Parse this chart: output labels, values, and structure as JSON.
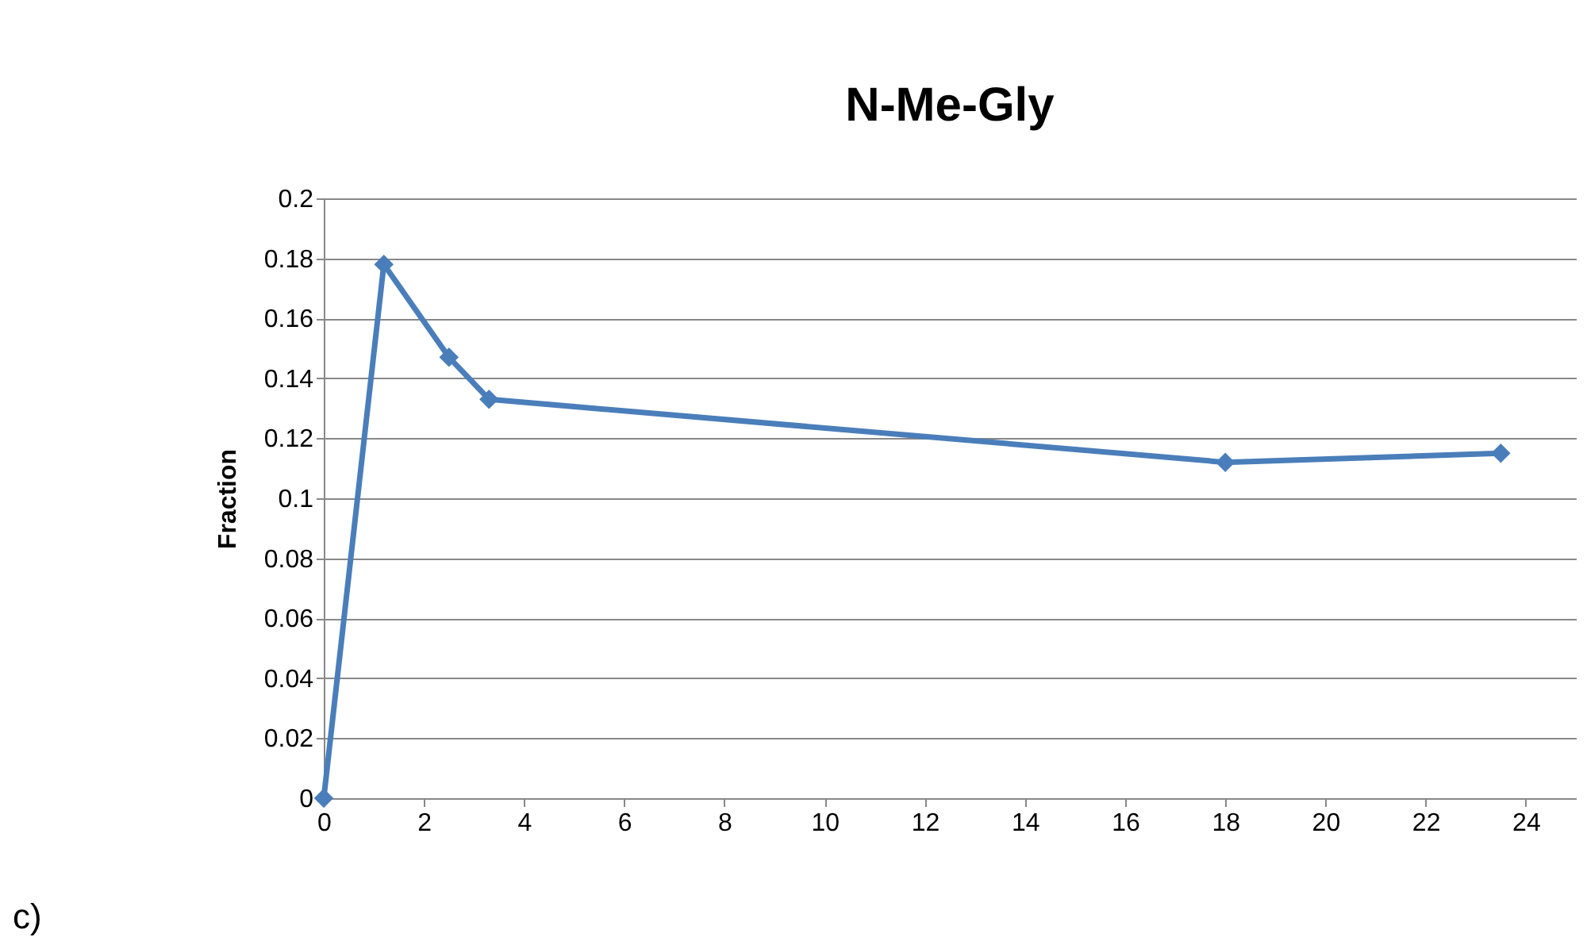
{
  "chart_data": {
    "type": "line",
    "title": "N-Me-Gly",
    "ylabel": "Fraction",
    "x": [
      0,
      1.2,
      2.5,
      3.3,
      18,
      23.5
    ],
    "series": [
      {
        "color": "#4a7ebb",
        "values": [
          0,
          0.178,
          0.147,
          0.133,
          0.112,
          0.115
        ]
      }
    ],
    "xlim": [
      0,
      25
    ],
    "xticks": [
      0,
      2,
      4,
      6,
      8,
      10,
      12,
      14,
      16,
      18,
      20,
      22,
      24
    ],
    "ylim": [
      0,
      0.2
    ],
    "yticks": [
      0,
      0.02,
      0.04,
      0.06,
      0.08,
      0.1,
      0.12,
      0.14,
      0.16,
      0.18,
      0.2
    ],
    "grid": "y",
    "marker": "diamond",
    "line_style": "solid",
    "annotations": [
      "c)"
    ]
  }
}
